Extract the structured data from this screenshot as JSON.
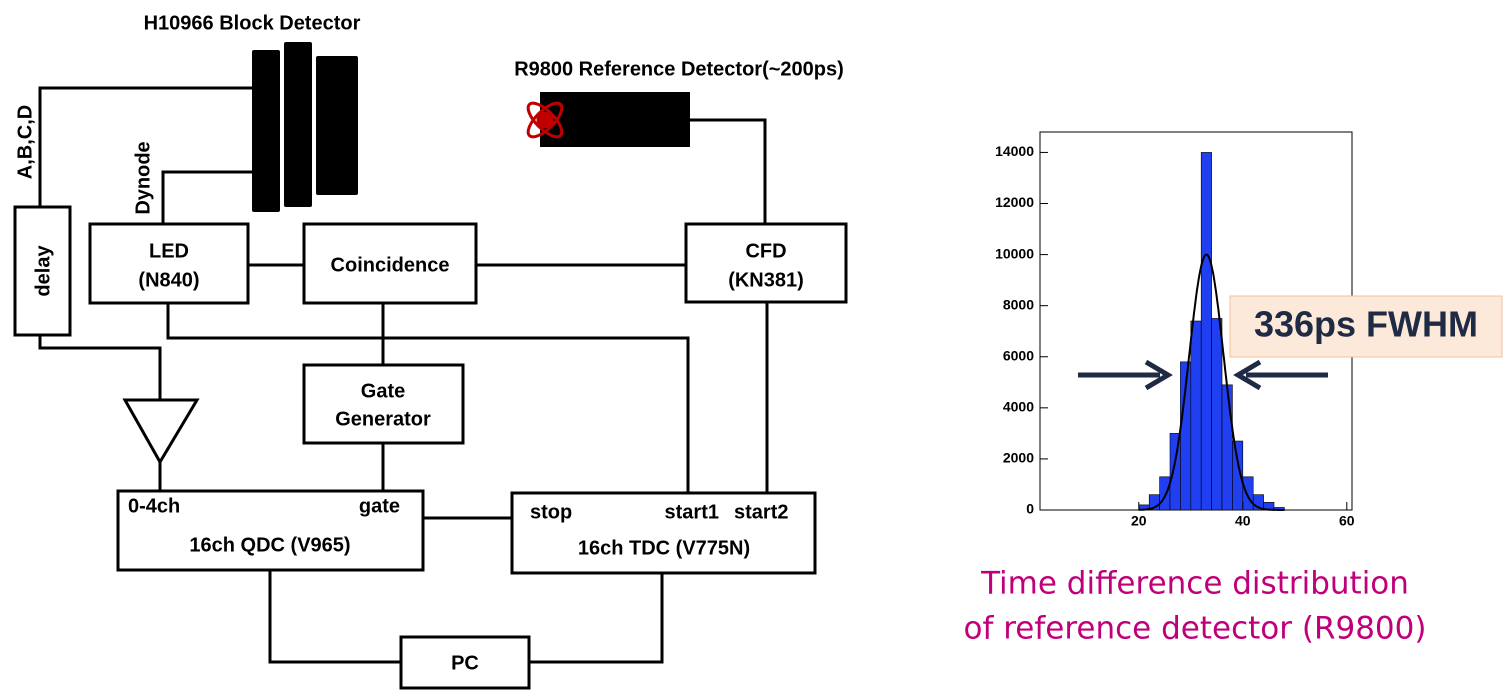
{
  "diagram": {
    "block_detector": "H10966 Block Detector",
    "reference_detector": "R9800 Reference Detector(~200ps)",
    "signal_abcd": "A,B,C,D",
    "signal_dynode": "Dynode",
    "delay": "delay",
    "led": [
      "LED",
      "(N840)"
    ],
    "coincidence": "Coincidence",
    "cfd": [
      "CFD",
      "(KN381)"
    ],
    "gate_generator": [
      "Gate",
      "Generator"
    ],
    "qdc": {
      "input": "0-4ch",
      "gate": "gate",
      "label": "16ch QDC (V965)"
    },
    "tdc": {
      "stop": "stop",
      "start1": "start1",
      "start2": "start2",
      "label": "16ch TDC (V775N)"
    },
    "pc": "PC"
  },
  "chart_data": {
    "type": "histogram",
    "bins": [
      20,
      22,
      24,
      26,
      28,
      30,
      32,
      34,
      36,
      38,
      40,
      42,
      44,
      46,
      48
    ],
    "values": [
      200,
      600,
      1300,
      3000,
      5800,
      7400,
      14000,
      7500,
      4900,
      2700,
      1300,
      600,
      300,
      100
    ],
    "color": "#1f3ff0",
    "fit": {
      "amplitude": 10000,
      "mean": 33,
      "sigma": 3.3
    },
    "xlim": [
      1,
      61
    ],
    "ylim": [
      0,
      14800
    ],
    "xticks": [
      20,
      40,
      60
    ],
    "yticks": [
      0,
      2000,
      4000,
      6000,
      8000,
      10000,
      12000,
      14000
    ],
    "annotation": "336ps FWHM",
    "caption": [
      "Time difference distribution",
      "of reference detector (R9800)"
    ]
  }
}
